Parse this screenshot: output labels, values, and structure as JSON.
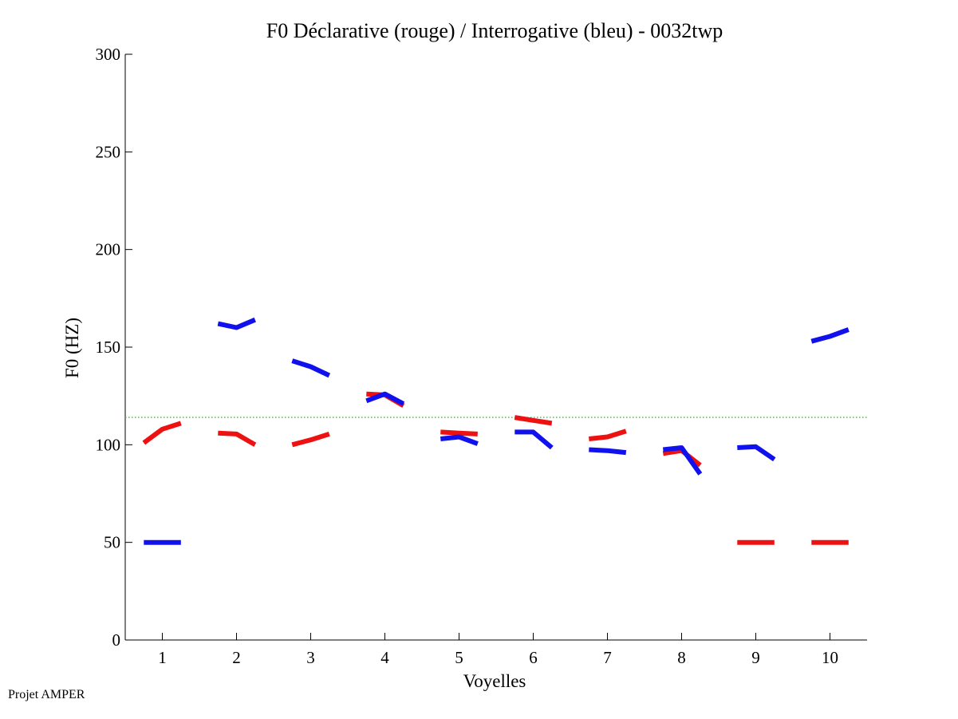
{
  "chart_data": {
    "type": "line",
    "title": "F0 Déclarative (rouge) / Interrogative (bleu) - 0032twp",
    "xlabel": "Voyelles",
    "ylabel": "F0 (HZ)",
    "xlim": [
      0.5,
      10.5
    ],
    "ylim": [
      0,
      300
    ],
    "xticks": [
      1,
      2,
      3,
      4,
      5,
      6,
      7,
      8,
      9,
      10
    ],
    "yticks": [
      0,
      50,
      100,
      150,
      200,
      250,
      300
    ],
    "grid": false,
    "reference_line": {
      "y": 114,
      "color": "#22cc22",
      "style": "dotted"
    },
    "series": [
      {
        "color": "#ee1111",
        "segments": [
          [
            [
              0.75,
              101
            ],
            [
              1.0,
              108
            ],
            [
              1.25,
              111
            ]
          ],
          [
            [
              1.75,
              106
            ],
            [
              2.0,
              105.5
            ],
            [
              2.25,
              100
            ]
          ],
          [
            [
              2.75,
              100
            ],
            [
              3.0,
              102.5
            ],
            [
              3.25,
              105.5
            ]
          ],
          [
            [
              3.75,
              126
            ],
            [
              4.0,
              125.5
            ],
            [
              4.25,
              120
            ]
          ],
          [
            [
              4.75,
              106.5
            ],
            [
              5.0,
              106
            ],
            [
              5.25,
              105.5
            ]
          ],
          [
            [
              5.75,
              114
            ],
            [
              6.0,
              112.5
            ],
            [
              6.25,
              111
            ]
          ],
          [
            [
              6.75,
              103
            ],
            [
              7.0,
              104
            ],
            [
              7.25,
              107
            ]
          ],
          [
            [
              7.75,
              95.5
            ],
            [
              8.0,
              97
            ],
            [
              8.25,
              89.5
            ]
          ],
          [
            [
              8.75,
              50
            ],
            [
              9.0,
              50
            ],
            [
              9.25,
              50
            ]
          ],
          [
            [
              9.75,
              50
            ],
            [
              10.0,
              50
            ],
            [
              10.25,
              50
            ]
          ]
        ]
      },
      {
        "color": "#1111ee",
        "segments": [
          [
            [
              0.75,
              50
            ],
            [
              1.0,
              50
            ],
            [
              1.25,
              50
            ]
          ],
          [
            [
              1.75,
              162
            ],
            [
              2.0,
              160
            ],
            [
              2.25,
              164
            ]
          ],
          [
            [
              2.75,
              143
            ],
            [
              3.0,
              140
            ],
            [
              3.25,
              135.5
            ]
          ],
          [
            [
              3.75,
              122.5
            ],
            [
              4.0,
              126
            ],
            [
              4.25,
              121
            ]
          ],
          [
            [
              4.75,
              103
            ],
            [
              5.0,
              104
            ],
            [
              5.25,
              100.5
            ]
          ],
          [
            [
              5.75,
              106.5
            ],
            [
              6.0,
              106.5
            ],
            [
              6.25,
              98.5
            ]
          ],
          [
            [
              6.75,
              97.5
            ],
            [
              7.0,
              97
            ],
            [
              7.25,
              96
            ]
          ],
          [
            [
              7.75,
              97.5
            ],
            [
              8.0,
              98.5
            ],
            [
              8.25,
              85
            ]
          ],
          [
            [
              8.75,
              98.5
            ],
            [
              9.0,
              99
            ],
            [
              9.25,
              92.5
            ]
          ],
          [
            [
              9.75,
              153
            ],
            [
              10.0,
              155.5
            ],
            [
              10.25,
              159
            ]
          ]
        ]
      }
    ]
  },
  "footer": {
    "note": "Projet AMPER"
  }
}
